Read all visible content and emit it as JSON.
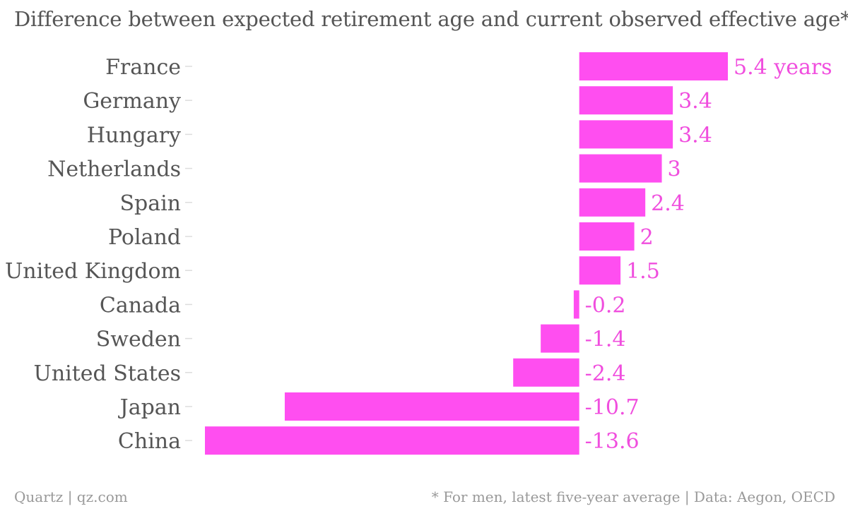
{
  "title": "Difference between expected retirement age and current observed effective age*",
  "footer": {
    "source_left": "Quartz | qz.com",
    "note_right": "* For men, latest five-year average | Data: Aegon, OECD"
  },
  "colors": {
    "bar": "#ff4ef0",
    "value_label": "#f04ede",
    "category_label": "#555555",
    "tick": "#dddddd"
  },
  "chart_data": {
    "type": "bar",
    "orientation": "horizontal",
    "title": "Difference between expected retirement age and current observed effective age*",
    "categories": [
      "France",
      "Germany",
      "Hungary",
      "Netherlands",
      "Spain",
      "Poland",
      "United Kingdom",
      "Canada",
      "Sweden",
      "United States",
      "Japan",
      "China"
    ],
    "values": [
      5.4,
      3.4,
      3.4,
      3,
      2.4,
      2,
      1.5,
      -0.2,
      -1.4,
      -2.4,
      -10.7,
      -13.6
    ],
    "value_labels": [
      "5.4 years",
      "3.4",
      "3.4",
      "3",
      "2.4",
      "2",
      "1.5",
      "-0.2",
      "-1.4",
      "-2.4",
      "-10.7",
      "-13.6"
    ],
    "xlim": [
      -13.6,
      5.4
    ],
    "grid": false,
    "legend": "none"
  }
}
